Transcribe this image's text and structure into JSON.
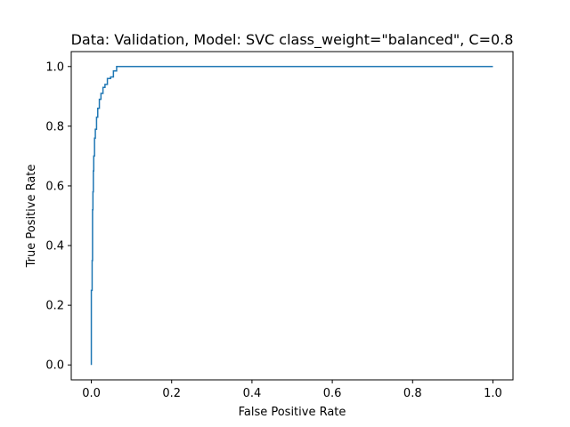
{
  "chart_data": {
    "type": "line",
    "title": "Data: Validation, Model: SVC class_weight=\"balanced\", C=0.8",
    "xlabel": "False Positive Rate",
    "ylabel": "True Positive Rate",
    "xlim": [
      -0.05,
      1.05
    ],
    "ylim": [
      -0.05,
      1.05
    ],
    "xticks": [
      0.0,
      0.2,
      0.4,
      0.6,
      0.8,
      1.0
    ],
    "xtick_labels": [
      "0.0",
      "0.2",
      "0.4",
      "0.6",
      "0.8",
      "1.0"
    ],
    "yticks": [
      0.0,
      0.2,
      0.4,
      0.6,
      0.8,
      1.0
    ],
    "ytick_labels": [
      "0.0",
      "0.2",
      "0.4",
      "0.6",
      "0.8",
      "1.0"
    ],
    "grid": false,
    "legend": false,
    "series": [
      {
        "color": "#1f77b4",
        "x": [
          0.0,
          0.0,
          0.002,
          0.002,
          0.003,
          0.003,
          0.004,
          0.004,
          0.005,
          0.005,
          0.006,
          0.006,
          0.008,
          0.008,
          0.01,
          0.01,
          0.013,
          0.013,
          0.016,
          0.016,
          0.02,
          0.02,
          0.024,
          0.024,
          0.029,
          0.029,
          0.034,
          0.034,
          0.04,
          0.04,
          0.048,
          0.048,
          0.055,
          0.055,
          0.063,
          0.063,
          1.0
        ],
        "y": [
          0.0,
          0.25,
          0.25,
          0.35,
          0.35,
          0.52,
          0.52,
          0.58,
          0.58,
          0.65,
          0.65,
          0.7,
          0.7,
          0.76,
          0.76,
          0.79,
          0.79,
          0.83,
          0.83,
          0.86,
          0.86,
          0.89,
          0.89,
          0.91,
          0.91,
          0.93,
          0.93,
          0.94,
          0.94,
          0.96,
          0.96,
          0.965,
          0.965,
          0.985,
          0.985,
          1.0,
          1.0
        ]
      }
    ]
  }
}
